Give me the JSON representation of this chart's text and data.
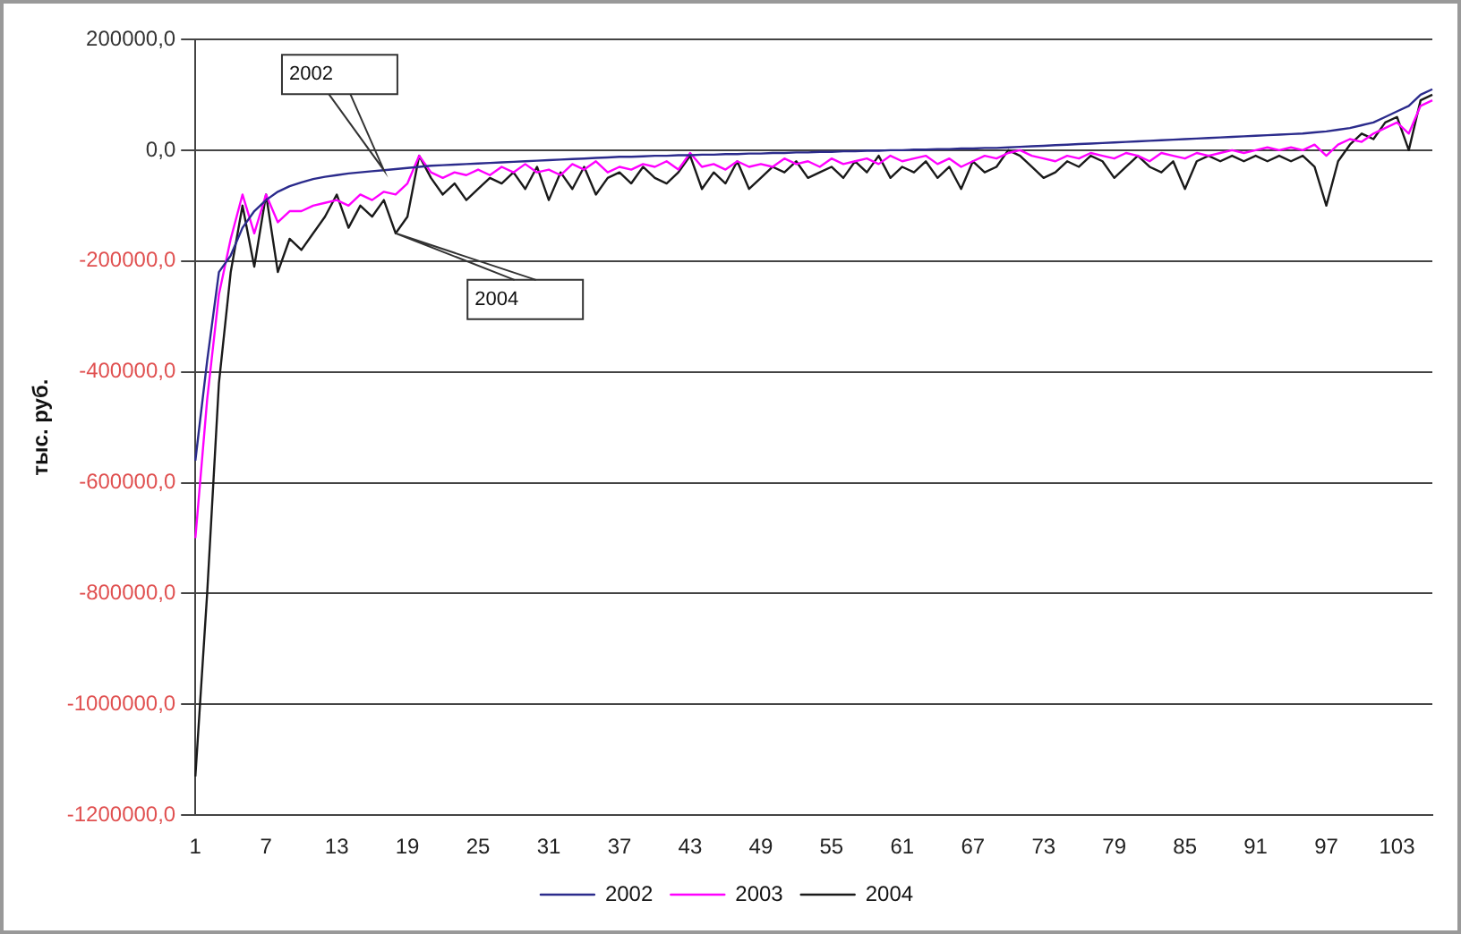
{
  "chart_data": {
    "type": "line",
    "ylabel": "тыс. руб.",
    "categories": [
      "1",
      null,
      null,
      null,
      null,
      null,
      "7",
      null,
      null,
      null,
      null,
      null,
      "13",
      null,
      null,
      null,
      null,
      null,
      "19",
      null,
      null,
      null,
      null,
      null,
      "25",
      null,
      null,
      null,
      null,
      null,
      "31",
      null,
      null,
      null,
      null,
      null,
      "37",
      null,
      null,
      null,
      null,
      null,
      "43",
      null,
      null,
      null,
      null,
      null,
      "49",
      null,
      null,
      null,
      null,
      null,
      "55",
      null,
      null,
      null,
      null,
      null,
      "61",
      null,
      null,
      null,
      null,
      null,
      "67",
      null,
      null,
      null,
      null,
      null,
      "73",
      null,
      null,
      null,
      null,
      null,
      "79",
      null,
      null,
      null,
      null,
      null,
      "85",
      null,
      null,
      null,
      null,
      null,
      "91",
      null,
      null,
      null,
      null,
      null,
      "97",
      null,
      null,
      null,
      null,
      null,
      "103",
      null,
      null,
      null
    ],
    "series": [
      {
        "name": "2002",
        "color": "#2b2b8c",
        "values": [
          -560000,
          -380000,
          -220000,
          -190000,
          -140000,
          -110000,
          -90000,
          -75000,
          -65000,
          -58000,
          -52000,
          -48000,
          -45000,
          -42000,
          -40000,
          -38000,
          -36000,
          -34000,
          -32000,
          -30000,
          -28000,
          -27000,
          -26000,
          -25000,
          -24000,
          -23000,
          -22000,
          -21000,
          -20000,
          -19000,
          -18000,
          -17000,
          -16000,
          -15000,
          -14000,
          -13000,
          -12000,
          -12000,
          -11000,
          -10000,
          -10000,
          -9000,
          -9000,
          -8000,
          -8000,
          -7000,
          -7000,
          -6000,
          -6000,
          -5000,
          -5000,
          -4000,
          -4000,
          -3000,
          -3000,
          -2000,
          -2000,
          -1000,
          -1000,
          0,
          0,
          1000,
          1000,
          2000,
          2000,
          3000,
          3000,
          4000,
          4000,
          5000,
          6000,
          7000,
          8000,
          9000,
          10000,
          11000,
          12000,
          13000,
          14000,
          15000,
          16000,
          17000,
          18000,
          19000,
          20000,
          21000,
          22000,
          23000,
          24000,
          25000,
          26000,
          27000,
          28000,
          29000,
          30000,
          32000,
          34000,
          37000,
          40000,
          45000,
          50000,
          60000,
          70000,
          80000,
          100000,
          110000
        ]
      },
      {
        "name": "2003",
        "color": "#ff00ff",
        "values": [
          -700000,
          -450000,
          -260000,
          -160000,
          -80000,
          -150000,
          -80000,
          -130000,
          -110000,
          -110000,
          -100000,
          -95000,
          -90000,
          -100000,
          -80000,
          -90000,
          -75000,
          -80000,
          -60000,
          -10000,
          -40000,
          -50000,
          -40000,
          -45000,
          -35000,
          -45000,
          -30000,
          -40000,
          -25000,
          -40000,
          -35000,
          -45000,
          -25000,
          -35000,
          -20000,
          -40000,
          -30000,
          -35000,
          -25000,
          -30000,
          -20000,
          -35000,
          -5000,
          -30000,
          -25000,
          -35000,
          -20000,
          -30000,
          -25000,
          -30000,
          -15000,
          -25000,
          -20000,
          -30000,
          -15000,
          -25000,
          -20000,
          -15000,
          -25000,
          -10000,
          -20000,
          -15000,
          -10000,
          -25000,
          -15000,
          -30000,
          -20000,
          -10000,
          -15000,
          -5000,
          0,
          -10000,
          -15000,
          -20000,
          -10000,
          -15000,
          -5000,
          -10000,
          -15000,
          -5000,
          -10000,
          -20000,
          -5000,
          -10000,
          -15000,
          -5000,
          -10000,
          -5000,
          0,
          -5000,
          0,
          5000,
          0,
          5000,
          0,
          10000,
          -10000,
          10000,
          20000,
          15000,
          30000,
          40000,
          50000,
          30000,
          80000,
          90000
        ]
      },
      {
        "name": "2004",
        "color": "#1a1a1a",
        "values": [
          -1130000,
          -800000,
          -420000,
          -220000,
          -100000,
          -210000,
          -80000,
          -220000,
          -160000,
          -180000,
          -150000,
          -120000,
          -80000,
          -140000,
          -100000,
          -120000,
          -90000,
          -150000,
          -120000,
          -10000,
          -50000,
          -80000,
          -60000,
          -90000,
          -70000,
          -50000,
          -60000,
          -40000,
          -70000,
          -30000,
          -90000,
          -40000,
          -70000,
          -30000,
          -80000,
          -50000,
          -40000,
          -60000,
          -30000,
          -50000,
          -60000,
          -40000,
          -10000,
          -70000,
          -40000,
          -60000,
          -20000,
          -70000,
          -50000,
          -30000,
          -40000,
          -20000,
          -50000,
          -40000,
          -30000,
          -50000,
          -20000,
          -40000,
          -10000,
          -50000,
          -30000,
          -40000,
          -20000,
          -50000,
          -30000,
          -70000,
          -20000,
          -40000,
          -30000,
          0,
          -10000,
          -30000,
          -50000,
          -40000,
          -20000,
          -30000,
          -10000,
          -20000,
          -50000,
          -30000,
          -10000,
          -30000,
          -40000,
          -20000,
          -70000,
          -20000,
          -10000,
          -20000,
          -10000,
          -20000,
          -10000,
          -20000,
          -10000,
          -20000,
          -10000,
          -30000,
          -100000,
          -20000,
          10000,
          30000,
          20000,
          50000,
          60000,
          0,
          90000,
          100000
        ]
      }
    ],
    "ylim": [
      -1200000,
      200000
    ],
    "yticks": [
      {
        "value": 200000,
        "label": "200000,0"
      },
      {
        "value": 0,
        "label": "0,0"
      },
      {
        "value": -200000,
        "label": "-200000,0"
      },
      {
        "value": -400000,
        "label": "-400000,0"
      },
      {
        "value": -600000,
        "label": "-600000,0"
      },
      {
        "value": -800000,
        "label": "-800000,0"
      },
      {
        "value": -1000000,
        "label": "-1000000,0"
      },
      {
        "value": -1200000,
        "label": "-1200000,0"
      }
    ],
    "grid": "y",
    "legend": "bottom",
    "marker": "none",
    "line_style": "solid",
    "annotations": [
      "2002",
      "2004"
    ]
  }
}
